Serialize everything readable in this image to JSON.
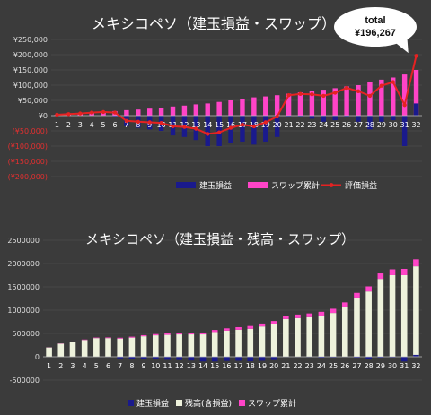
{
  "chart_data": [
    {
      "type": "bar",
      "title": "メキシコペソ（建玉損益・スワップ）",
      "x": [
        1,
        2,
        3,
        4,
        5,
        6,
        7,
        8,
        9,
        10,
        11,
        12,
        13,
        14,
        15,
        16,
        17,
        18,
        19,
        20,
        21,
        22,
        23,
        24,
        25,
        26,
        27,
        28,
        29,
        30,
        31,
        32
      ],
      "ylim": [
        -200000,
        250000
      ],
      "yticks": [
        "¥250,000",
        "¥200,000",
        "¥150,000",
        "¥100,000",
        "¥50,000",
        "¥0",
        "(¥50,000)",
        "(¥100,000)",
        "(¥150,000)",
        "(¥200,000)"
      ],
      "series": [
        {
          "name": "建玉損益",
          "type": "bar",
          "color": "#1a1a8c",
          "values": [
            0,
            0,
            0,
            0,
            0,
            -5000,
            -35000,
            -40000,
            -45000,
            -50000,
            -65000,
            -70000,
            -80000,
            -100000,
            -100000,
            -90000,
            -85000,
            -95000,
            -85000,
            -70000,
            -5000,
            -5000,
            -10000,
            -20000,
            -15000,
            -5000,
            -20000,
            -45000,
            -20000,
            -15000,
            -100000,
            40000
          ]
        },
        {
          "name": "スワップ累計",
          "type": "bar",
          "color": "#ff44c8",
          "values": [
            3000,
            5000,
            7000,
            10000,
            12000,
            15000,
            18000,
            20000,
            23000,
            26000,
            30000,
            33000,
            37000,
            40000,
            45000,
            50000,
            55000,
            60000,
            63000,
            67000,
            72000,
            76000,
            80000,
            85000,
            90000,
            96000,
            100000,
            110000,
            118000,
            125000,
            135000,
            150000
          ]
        },
        {
          "name": "評価損益",
          "type": "line",
          "color": "#e52222",
          "values": [
            3000,
            5000,
            7000,
            10000,
            12000,
            10000,
            -17000,
            -20000,
            -22000,
            -24000,
            -35000,
            -37000,
            -43000,
            -60000,
            -55000,
            -40000,
            -30000,
            -35000,
            -22000,
            -3000,
            67000,
            71000,
            70000,
            65000,
            75000,
            91000,
            80000,
            65000,
            98000,
            110000,
            35000,
            196267
          ]
        }
      ],
      "annotation": {
        "label": "total",
        "value": "¥196,267"
      },
      "legend": "bottom"
    },
    {
      "type": "bar",
      "title": "メキシコペソ（建玉損益・残高・スワップ）",
      "x": [
        1,
        2,
        3,
        4,
        5,
        6,
        7,
        8,
        9,
        10,
        11,
        12,
        13,
        14,
        15,
        16,
        17,
        18,
        19,
        20,
        21,
        22,
        23,
        24,
        25,
        26,
        27,
        28,
        29,
        30,
        31,
        32
      ],
      "ylim": [
        -500000,
        2500000
      ],
      "yticks": [
        "2500000",
        "2000000",
        "1500000",
        "1000000",
        "500000",
        "0",
        "-500000"
      ],
      "series": [
        {
          "name": "建玉損益",
          "type": "bar",
          "color": "#1a1a8c",
          "values": [
            0,
            0,
            0,
            0,
            0,
            -5000,
            -35000,
            -40000,
            -45000,
            -50000,
            -65000,
            -70000,
            -80000,
            -100000,
            -100000,
            -90000,
            -85000,
            -95000,
            -85000,
            -70000,
            -5000,
            -5000,
            -10000,
            -20000,
            -15000,
            -5000,
            -20000,
            -45000,
            -20000,
            -15000,
            -100000,
            40000
          ]
        },
        {
          "name": "残高(含損益)",
          "type": "bar",
          "color": "#eef2dc",
          "values": [
            200000,
            280000,
            320000,
            360000,
            400000,
            400000,
            390000,
            410000,
            440000,
            460000,
            470000,
            480000,
            480000,
            480000,
            530000,
            560000,
            580000,
            600000,
            650000,
            700000,
            810000,
            830000,
            850000,
            880000,
            940000,
            1070000,
            1270000,
            1400000,
            1670000,
            1750000,
            1750000,
            1940000
          ]
        },
        {
          "name": "スワップ累計",
          "type": "bar",
          "color": "#ff44c8",
          "values": [
            3000,
            5000,
            7000,
            10000,
            12000,
            15000,
            18000,
            20000,
            23000,
            26000,
            30000,
            33000,
            37000,
            40000,
            45000,
            50000,
            55000,
            60000,
            63000,
            67000,
            72000,
            76000,
            80000,
            85000,
            90000,
            96000,
            100000,
            110000,
            118000,
            125000,
            135000,
            150000
          ]
        }
      ],
      "legend": "bottom"
    }
  ]
}
